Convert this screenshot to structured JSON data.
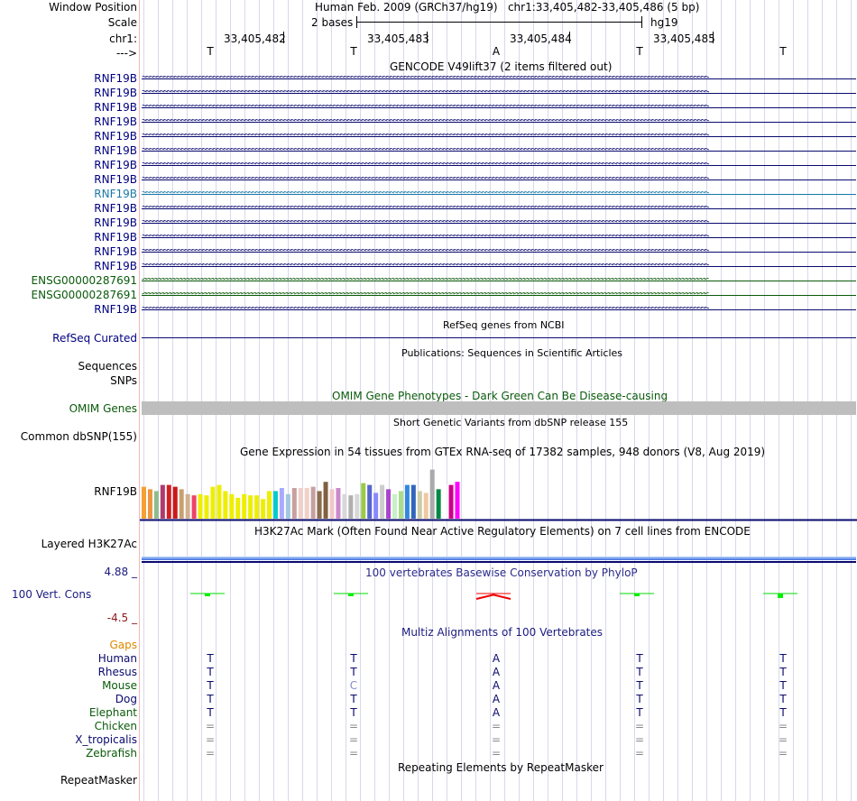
{
  "header": {
    "window_position_label": "Window Position",
    "scale_label": "Scale",
    "chrom_label": "chr1:",
    "arrow_label": "--->",
    "position_title": "Human Feb. 2009 (GRCh37/hg19)   chr1:33,405,482-33,405,486 (5 bp)",
    "scale_bar_text": "2 bases",
    "assembly": "hg19",
    "coordinates": [
      "33,405,482",
      "33,405,483",
      "33,405,484",
      "33,405,485"
    ],
    "bases": [
      "T",
      "T",
      "A",
      "T",
      "T"
    ]
  },
  "gencode": {
    "title": "GENCODE V49lift37 (2 items filtered out)",
    "transcripts": [
      {
        "name": "RNF19B",
        "strand": "-",
        "color": "#0a0a6e"
      },
      {
        "name": "RNF19B",
        "strand": "-",
        "color": "#0a0a6e"
      },
      {
        "name": "RNF19B",
        "strand": "-",
        "color": "#0a0a6e"
      },
      {
        "name": "RNF19B",
        "strand": "-",
        "color": "#0a0a6e"
      },
      {
        "name": "RNF19B",
        "strand": "-",
        "color": "#0a0a6e"
      },
      {
        "name": "RNF19B",
        "strand": "-",
        "color": "#0a0a6e"
      },
      {
        "name": "RNF19B",
        "strand": "-",
        "color": "#0a0a6e"
      },
      {
        "name": "RNF19B",
        "strand": "-",
        "color": "#0a0a6e"
      },
      {
        "name": "RNF19B",
        "strand": "-",
        "color": "#1a78a8"
      },
      {
        "name": "RNF19B",
        "strand": "-",
        "color": "#0a0a6e"
      },
      {
        "name": "RNF19B",
        "strand": "-",
        "color": "#0a0a6e"
      },
      {
        "name": "RNF19B",
        "strand": "-",
        "color": "#0a0a6e"
      },
      {
        "name": "RNF19B",
        "strand": "-",
        "color": "#0a0a6e"
      },
      {
        "name": "RNF19B",
        "strand": "-",
        "color": "#0a0a6e"
      },
      {
        "name": "ENSG00000287691",
        "strand": "+",
        "color": "#0a5a0a"
      },
      {
        "name": "ENSG00000287691",
        "strand": "+",
        "color": "#0a5a0a"
      },
      {
        "name": "RNF19B",
        "strand": "-",
        "color": "#0a0a6e"
      }
    ]
  },
  "refseq": {
    "title": "RefSeq genes from NCBI",
    "label": "RefSeq Curated"
  },
  "publications": {
    "title": "Publications: Sequences in Scientific Articles",
    "label1": "Sequences",
    "label2": "SNPs"
  },
  "omim": {
    "title": "OMIM Gene Phenotypes - Dark Green Can Be Disease-causing",
    "label": "OMIM Genes"
  },
  "dbsnp": {
    "title": "Short Genetic Variants from dbSNP release 155",
    "label": "Common dbSNP(155)"
  },
  "gtex": {
    "title": "Gene Expression in 54 tissues from GTEx RNA-seq of 17382 samples, 948 donors (V8, Aug 2019)",
    "label": "RNF19B",
    "bars": [
      {
        "v": 0.52,
        "c": "#f4a034"
      },
      {
        "v": 0.48,
        "c": "#ee9540"
      },
      {
        "v": 0.45,
        "c": "#8fbc8f"
      },
      {
        "v": 0.55,
        "c": "#b03a6e"
      },
      {
        "v": 0.55,
        "c": "#d02020"
      },
      {
        "v": 0.52,
        "c": "#cc1818"
      },
      {
        "v": 0.48,
        "c": "#c8a070"
      },
      {
        "v": 0.4,
        "c": "#d4b090"
      },
      {
        "v": 0.38,
        "c": "#ee4466"
      },
      {
        "v": 0.4,
        "c": "#eeee00"
      },
      {
        "v": 0.38,
        "c": "#eeee00"
      },
      {
        "v": 0.52,
        "c": "#eeee00"
      },
      {
        "v": 0.55,
        "c": "#eeee00"
      },
      {
        "v": 0.45,
        "c": "#eeee00"
      },
      {
        "v": 0.4,
        "c": "#eeee00"
      },
      {
        "v": 0.34,
        "c": "#eeee00"
      },
      {
        "v": 0.4,
        "c": "#eeee00"
      },
      {
        "v": 0.38,
        "c": "#eeee00"
      },
      {
        "v": 0.38,
        "c": "#eeee00"
      },
      {
        "v": 0.32,
        "c": "#eeee00"
      },
      {
        "v": 0.45,
        "c": "#eeee00"
      },
      {
        "v": 0.45,
        "c": "#00cccc"
      },
      {
        "v": 0.5,
        "c": "#aaaaff"
      },
      {
        "v": 0.4,
        "c": "#a0c8e0"
      },
      {
        "v": 0.5,
        "c": "#c8a0a0"
      },
      {
        "v": 0.5,
        "c": "#f0d0c8"
      },
      {
        "v": 0.5,
        "c": "#f0d0c8"
      },
      {
        "v": 0.52,
        "c": "#c8a0a0"
      },
      {
        "v": 0.45,
        "c": "#8b6b4b"
      },
      {
        "v": 0.6,
        "c": "#806040"
      },
      {
        "v": 0.48,
        "c": "#f0c8c8"
      },
      {
        "v": 0.5,
        "c": "#cc88cc"
      },
      {
        "v": 0.4,
        "c": "#d8d8d8"
      },
      {
        "v": 0.38,
        "c": "#b0b0b0"
      },
      {
        "v": 0.4,
        "c": "#d8d8d8"
      },
      {
        "v": 0.58,
        "c": "#99cc44"
      },
      {
        "v": 0.55,
        "c": "#5566cc"
      },
      {
        "v": 0.42,
        "c": "#8888ff"
      },
      {
        "v": 0.55,
        "c": "#cccccc"
      },
      {
        "v": 0.48,
        "c": "#aa44cc"
      },
      {
        "v": 0.4,
        "c": "#c8f0c8"
      },
      {
        "v": 0.45,
        "c": "#aadd88"
      },
      {
        "v": 0.55,
        "c": "#3388dd"
      },
      {
        "v": 0.55,
        "c": "#3366bb"
      },
      {
        "v": 0.45,
        "c": "#ccccaa"
      },
      {
        "v": 0.42,
        "c": "#f0c8a0"
      },
      {
        "v": 0.8,
        "c": "#aaaaaa"
      },
      {
        "v": 0.48,
        "c": "#008844"
      },
      {
        "v": 0.55,
        "c": "#ffffff"
      },
      {
        "v": 0.55,
        "c": "#cc0088"
      },
      {
        "v": 0.6,
        "c": "#ff00ff"
      }
    ]
  },
  "h3k27ac": {
    "title": "H3K27Ac Mark (Often Found Near Active Regulatory Elements) on 7 cell lines from ENCODE",
    "label": "Layered H3K27Ac"
  },
  "phylop": {
    "title": "100 vertebrates Basewise Conservation by PhyloP",
    "label": "100 Vert. Cons",
    "max_label": "4.88 _",
    "min_label": "-4.5 _",
    "max": 4.88,
    "min": -4.5,
    "scores": [
      0.6,
      0.2,
      -0.6,
      0.5,
      1.1
    ]
  },
  "multiz": {
    "title": "Multiz Alignments of 100 Vertebrates",
    "gaps_label": "Gaps",
    "species": [
      {
        "name": "Human",
        "bases": [
          "T",
          "T",
          "A",
          "T",
          "T"
        ]
      },
      {
        "name": "Rhesus",
        "bases": [
          "T",
          "T",
          "A",
          "T",
          "T"
        ]
      },
      {
        "name": "Mouse",
        "bases": [
          "T",
          "C",
          "A",
          "T",
          "T"
        ]
      },
      {
        "name": "Dog",
        "bases": [
          "T",
          "T",
          "A",
          "T",
          "T"
        ]
      },
      {
        "name": "Elephant",
        "bases": [
          "T",
          "T",
          "A",
          "T",
          "T"
        ]
      },
      {
        "name": "Chicken",
        "bases": [
          "=",
          "=",
          "=",
          "=",
          "="
        ]
      },
      {
        "name": "X_tropicalis",
        "bases": [
          "=",
          "=",
          "=",
          "=",
          "="
        ]
      },
      {
        "name": "Zebrafish",
        "bases": [
          "=",
          "=",
          "=",
          "=",
          "="
        ]
      }
    ]
  },
  "repeatmasker": {
    "title": "Repeating Elements by RepeatMasker",
    "label": "RepeatMasker"
  }
}
